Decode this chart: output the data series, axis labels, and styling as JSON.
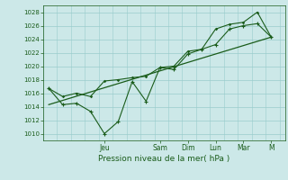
{
  "xlabel": "Pression niveau de la mer( hPa )",
  "bg_color": "#cce8e8",
  "grid_color": "#99cccc",
  "line_color": "#1a5c1a",
  "ylim": [
    1009,
    1029
  ],
  "yticks": [
    1010,
    1012,
    1014,
    1016,
    1018,
    1020,
    1022,
    1024,
    1026,
    1028
  ],
  "day_labels": [
    "Jeu",
    "Sam",
    "Dim",
    "Lun",
    "Mar",
    "M"
  ],
  "day_positions": [
    2.0,
    4.0,
    5.0,
    6.0,
    7.0,
    8.0
  ],
  "xlim": [
    -0.2,
    8.5
  ],
  "series1_x": [
    0.0,
    0.5,
    1.0,
    1.5,
    2.0,
    2.5,
    3.0,
    3.5,
    4.0,
    4.5,
    5.0,
    5.5,
    6.0,
    6.5,
    7.0,
    7.5,
    8.0
  ],
  "series1_y": [
    1016.7,
    1014.3,
    1014.5,
    1013.3,
    1010.0,
    1011.8,
    1017.7,
    1014.8,
    1019.8,
    1019.5,
    1021.8,
    1022.5,
    1023.2,
    1025.5,
    1026.0,
    1026.3,
    1024.3
  ],
  "series2_x": [
    0.0,
    0.5,
    1.0,
    1.5,
    2.0,
    2.5,
    3.0,
    3.5,
    4.0,
    4.5,
    5.0,
    5.5,
    6.0,
    6.5,
    7.0,
    7.5,
    8.0
  ],
  "series2_y": [
    1016.7,
    1015.5,
    1016.0,
    1015.5,
    1017.8,
    1018.0,
    1018.3,
    1018.5,
    1019.8,
    1020.0,
    1022.2,
    1022.5,
    1025.5,
    1026.2,
    1026.5,
    1028.0,
    1024.3
  ],
  "trend_x": [
    0.0,
    8.0
  ],
  "trend_y": [
    1014.3,
    1024.3
  ],
  "minor_x_step": 0.5
}
